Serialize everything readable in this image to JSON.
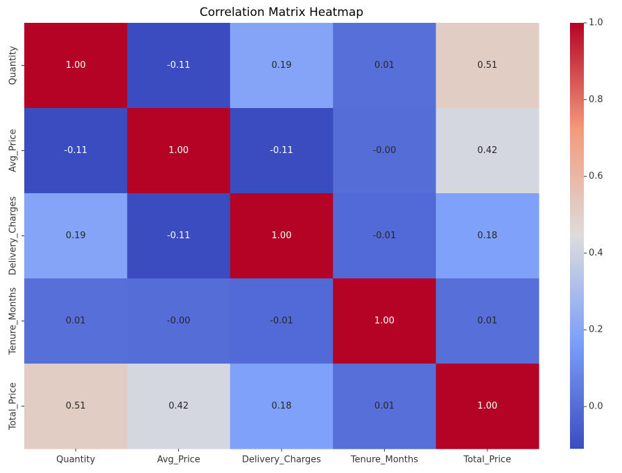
{
  "chart_data": {
    "type": "heatmap",
    "title": "Correlation Matrix Heatmap",
    "categories": [
      "Quantity",
      "Avg_Price",
      "Delivery_Charges",
      "Tenure_Months",
      "Total_Price"
    ],
    "values": [
      [
        1,
        -0.11,
        0.19,
        0.01,
        0.51
      ],
      [
        -0.11,
        1,
        -0.11,
        0,
        0.42
      ],
      [
        0.19,
        -0.11,
        1,
        -0.01,
        0.18
      ],
      [
        0.01,
        0,
        -0.01,
        1,
        0.01
      ],
      [
        0.51,
        0.42,
        0.18,
        0.01,
        1
      ]
    ],
    "value_labels": [
      [
        "1.00",
        "-0.11",
        "0.19",
        "0.01",
        "0.51"
      ],
      [
        "-0.11",
        "1.00",
        "-0.11",
        "-0.00",
        "0.42"
      ],
      [
        "0.19",
        "-0.11",
        "1.00",
        "-0.01",
        "0.18"
      ],
      [
        "0.01",
        "-0.00",
        "-0.01",
        "1.00",
        "0.01"
      ],
      [
        "0.51",
        "0.42",
        "0.18",
        "0.01",
        "1.00"
      ]
    ],
    "colormap": "coolwarm",
    "zlim": [
      -0.11,
      1
    ],
    "zticks": [
      {
        "value": 0,
        "label": "0.0"
      },
      {
        "value": 0.2,
        "label": "0.2"
      },
      {
        "value": 0.4,
        "label": "0.4"
      },
      {
        "value": 0.6,
        "label": "0.6"
      },
      {
        "value": 0.8,
        "label": "0.8"
      },
      {
        "value": 1,
        "label": "1.0"
      }
    ]
  }
}
